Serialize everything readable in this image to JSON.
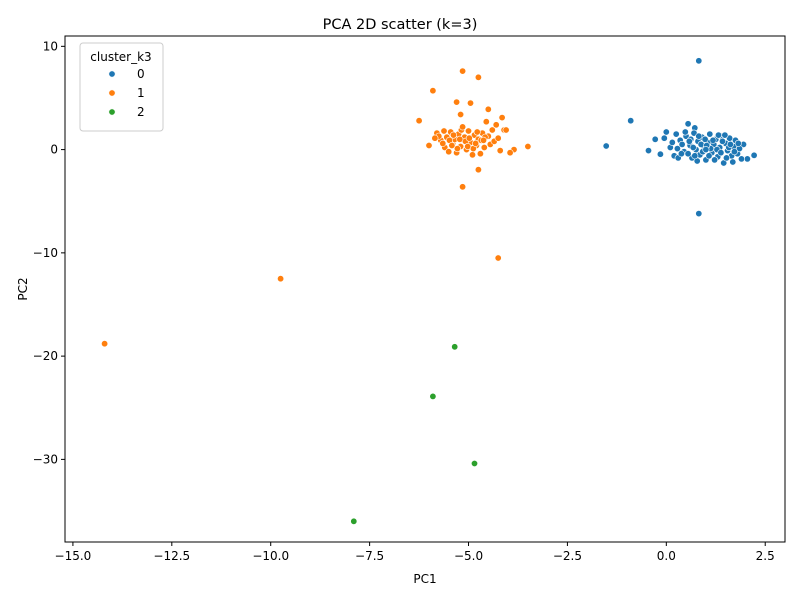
{
  "chart_data": {
    "type": "scatter",
    "title": "PCA 2D scatter (k=3)",
    "xlabel": "PC1",
    "ylabel": "PC2",
    "xlim": [
      -15.2,
      3.0
    ],
    "ylim": [
      -38.0,
      11.0
    ],
    "xticks": [
      -15.0,
      -12.5,
      -10.0,
      -7.5,
      -5.0,
      -2.5,
      0.0,
      2.5
    ],
    "xtick_labels": [
      "−15.0",
      "−12.5",
      "−10.0",
      "−7.5",
      "−5.0",
      "−2.5",
      "0.0",
      "2.5"
    ],
    "yticks": [
      -30,
      -20,
      -10,
      0,
      10
    ],
    "ytick_labels": [
      "−30",
      "−20",
      "−10",
      "0",
      "10"
    ],
    "grid": false,
    "legend": {
      "title": "cluster_k3",
      "placement": "top-left",
      "entries": [
        "0",
        "1",
        "2"
      ]
    },
    "series": [
      {
        "name": "0",
        "color": "#1f77b4",
        "points": [
          [
            0.82,
            8.6
          ],
          [
            0.82,
            -6.2
          ],
          [
            -0.9,
            2.8
          ],
          [
            -1.52,
            0.35
          ],
          [
            -0.28,
            1.0
          ],
          [
            -0.45,
            -0.1
          ],
          [
            -0.15,
            -0.45
          ],
          [
            -0.05,
            1.1
          ],
          [
            0.0,
            1.7
          ],
          [
            2.22,
            -0.55
          ],
          [
            2.05,
            -0.9
          ],
          [
            1.95,
            0.5
          ],
          [
            0.55,
            2.5
          ],
          [
            0.72,
            2.1
          ],
          [
            0.25,
            1.5
          ],
          [
            0.1,
            0.2
          ],
          [
            0.2,
            -0.6
          ],
          [
            0.35,
            0.9
          ],
          [
            0.45,
            -0.2
          ],
          [
            0.5,
            1.3
          ],
          [
            0.6,
            0.4
          ],
          [
            0.65,
            -0.8
          ],
          [
            0.7,
            1.6
          ],
          [
            0.75,
            0.0
          ],
          [
            0.8,
            0.8
          ],
          [
            0.85,
            -0.5
          ],
          [
            0.9,
            1.2
          ],
          [
            0.95,
            0.3
          ],
          [
            1.0,
            -1.0
          ],
          [
            1.05,
            0.7
          ],
          [
            1.1,
            1.5
          ],
          [
            1.15,
            -0.3
          ],
          [
            1.2,
            0.5
          ],
          [
            1.25,
            1.0
          ],
          [
            1.3,
            -0.7
          ],
          [
            1.35,
            0.2
          ],
          [
            1.4,
            1.3
          ],
          [
            1.45,
            -1.3
          ],
          [
            1.5,
            0.6
          ],
          [
            1.55,
            -0.1
          ],
          [
            1.6,
            1.1
          ],
          [
            1.65,
            -0.6
          ],
          [
            1.7,
            0.3
          ],
          [
            1.75,
            0.9
          ],
          [
            1.8,
            -0.4
          ],
          [
            1.85,
            0.1
          ],
          [
            1.9,
            -0.9
          ],
          [
            0.3,
            -0.8
          ],
          [
            0.4,
            0.5
          ],
          [
            0.55,
            -0.4
          ],
          [
            0.62,
            1.0
          ],
          [
            0.68,
            0.2
          ],
          [
            0.78,
            -1.1
          ],
          [
            0.88,
            0.5
          ],
          [
            0.98,
            1.0
          ],
          [
            1.08,
            -0.6
          ],
          [
            1.18,
            0.9
          ],
          [
            1.28,
            0.0
          ],
          [
            1.38,
            -0.3
          ],
          [
            1.48,
            1.4
          ],
          [
            1.58,
            0.2
          ],
          [
            1.68,
            -1.2
          ],
          [
            0.15,
            0.7
          ],
          [
            0.28,
            0.1
          ],
          [
            1.12,
            0.1
          ],
          [
            0.92,
            -0.2
          ],
          [
            1.02,
            0.4
          ],
          [
            1.22,
            -1.0
          ],
          [
            1.42,
            0.8
          ],
          [
            1.62,
            0.5
          ],
          [
            0.58,
            0.8
          ],
          [
            0.48,
            1.7
          ],
          [
            0.38,
            -0.4
          ],
          [
            1.32,
            1.4
          ],
          [
            1.52,
            -0.8
          ],
          [
            1.72,
            -0.2
          ],
          [
            1.82,
            0.6
          ],
          [
            0.72,
            -0.6
          ],
          [
            0.82,
            1.3
          ],
          [
            1.0,
            0.0
          ]
        ]
      },
      {
        "name": "1",
        "color": "#ff7f0e",
        "points": [
          [
            -14.2,
            -18.8
          ],
          [
            -9.75,
            -12.5
          ],
          [
            -4.25,
            -10.5
          ],
          [
            -4.75,
            -1.95
          ],
          [
            -5.15,
            -3.6
          ],
          [
            -5.15,
            7.6
          ],
          [
            -4.75,
            7.0
          ],
          [
            -5.9,
            5.7
          ],
          [
            -5.3,
            4.6
          ],
          [
            -4.95,
            4.5
          ],
          [
            -4.5,
            3.9
          ],
          [
            -4.15,
            3.1
          ],
          [
            -6.25,
            2.8
          ],
          [
            -5.2,
            3.4
          ],
          [
            -3.5,
            0.3
          ],
          [
            -3.85,
            0.0
          ],
          [
            -3.95,
            -0.3
          ],
          [
            -4.3,
            2.4
          ],
          [
            -4.55,
            2.7
          ],
          [
            -6.0,
            0.4
          ],
          [
            -5.8,
            1.6
          ],
          [
            -5.7,
            0.9
          ],
          [
            -5.6,
            0.2
          ],
          [
            -5.55,
            1.2
          ],
          [
            -5.5,
            -0.2
          ],
          [
            -5.45,
            1.7
          ],
          [
            -5.4,
            0.6
          ],
          [
            -5.35,
            1.0
          ],
          [
            -5.3,
            -0.3
          ],
          [
            -5.25,
            1.5
          ],
          [
            -5.2,
            0.3
          ],
          [
            -5.1,
            1.2
          ],
          [
            -5.05,
            0.0
          ],
          [
            -5.0,
            1.8
          ],
          [
            -4.95,
            0.7
          ],
          [
            -4.9,
            -0.5
          ],
          [
            -4.85,
            1.4
          ],
          [
            -4.8,
            0.4
          ],
          [
            -4.75,
            1.0
          ],
          [
            -4.7,
            -0.4
          ],
          [
            -4.65,
            1.6
          ],
          [
            -4.6,
            0.2
          ],
          [
            -4.5,
            1.3
          ],
          [
            -4.45,
            0.5
          ],
          [
            -4.4,
            1.9
          ],
          [
            -4.35,
            0.8
          ],
          [
            -4.25,
            1.1
          ],
          [
            -4.2,
            -0.1
          ],
          [
            -4.1,
            1.9
          ],
          [
            -4.05,
            1.9
          ],
          [
            -5.75,
            1.3
          ],
          [
            -5.65,
            0.6
          ],
          [
            -5.48,
            0.9
          ],
          [
            -5.38,
            1.4
          ],
          [
            -5.28,
            0.1
          ],
          [
            -5.18,
            1.9
          ],
          [
            -5.08,
            0.8
          ],
          [
            -4.98,
            1.1
          ],
          [
            -4.88,
            0.1
          ],
          [
            -4.78,
            1.7
          ],
          [
            -4.68,
            0.9
          ],
          [
            -4.58,
            1.2
          ],
          [
            -5.62,
            1.8
          ],
          [
            -5.42,
            0.4
          ],
          [
            -5.22,
            1.0
          ],
          [
            -5.02,
            0.3
          ],
          [
            -4.82,
            0.6
          ],
          [
            -4.62,
            0.9
          ],
          [
            -5.85,
            1.1
          ],
          [
            -5.15,
            2.2
          ]
        ]
      },
      {
        "name": "2",
        "color": "#2ca02c",
        "points": [
          [
            -5.35,
            -19.1
          ],
          [
            -5.9,
            -23.9
          ],
          [
            -4.85,
            -30.4
          ],
          [
            -7.9,
            -36.0
          ]
        ]
      }
    ]
  }
}
